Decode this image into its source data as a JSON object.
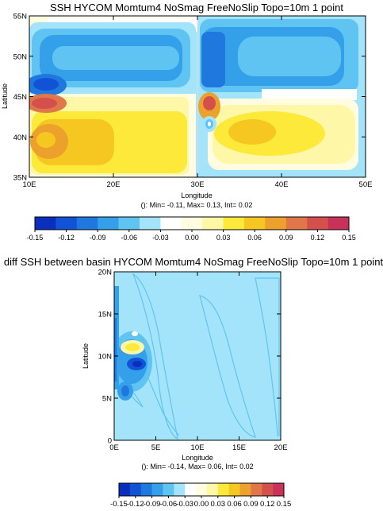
{
  "palette": [
    "#0a2fbe",
    "#1252d4",
    "#1f78de",
    "#35a0ea",
    "#5fc4f2",
    "#a4e4fb",
    "#ffffff",
    "#fffce0",
    "#fff7a8",
    "#fde93a",
    "#f6c720",
    "#eba12c",
    "#e0774a",
    "#d4504d",
    "#c8325a"
  ],
  "colorbar_ticks": [
    "-0.15",
    "-0.12",
    "-0.09",
    "-0.06",
    "-0.03",
    "0.00",
    "0.03",
    "0.06",
    "0.09",
    "0.12",
    "0.15"
  ],
  "chart_data": [
    {
      "type": "heatmap",
      "title": "SSH HYCOM Momtum4 NoSmag FreeNoSlip Topo=10m 1 point",
      "xlabel": "Longitude",
      "ylabel": "Latitude",
      "xlim": [
        10,
        50
      ],
      "ylim": [
        35,
        55
      ],
      "xticks": [
        {
          "v": 10,
          "label": "10E"
        },
        {
          "v": 20,
          "label": "20E"
        },
        {
          "v": 30,
          "label": "30E"
        },
        {
          "v": 40,
          "label": "40E"
        },
        {
          "v": 50,
          "label": "50E"
        }
      ],
      "yticks": [
        {
          "v": 35,
          "label": "35N"
        },
        {
          "v": 40,
          "label": "40N"
        },
        {
          "v": 45,
          "label": "45N"
        },
        {
          "v": 50,
          "label": "50N"
        },
        {
          "v": 55,
          "label": "55N"
        }
      ],
      "stats": "(): Min= -0.11, Max= 0.13, Int= 0.02",
      "zlim": [
        -0.15,
        0.15
      ],
      "contour_interval": 0.02,
      "basins": [
        {
          "lon": [
            10,
            30
          ],
          "lat": [
            35,
            55
          ]
        },
        {
          "lon": [
            30,
            50
          ],
          "lat": [
            35,
            55
          ]
        }
      ],
      "features": [
        {
          "basin": 0,
          "lon": 12,
          "lat": 46,
          "value": -0.11
        },
        {
          "basin": 0,
          "lon": 12,
          "lat": 44,
          "value": 0.13
        },
        {
          "basin": 0,
          "lon": 13,
          "lat": 39.5,
          "value": 0.07
        },
        {
          "basin": 0,
          "lon": 20,
          "lat": 49.5,
          "value": -0.06
        },
        {
          "basin": 0,
          "lon": 20,
          "lat": 41,
          "value": 0.06
        },
        {
          "basin": 1,
          "lon": 32,
          "lat": 49.5,
          "value": -0.09
        },
        {
          "basin": 1,
          "lon": 31.5,
          "lat": 44,
          "value": 0.13
        },
        {
          "basin": 1,
          "lon": 31.5,
          "lat": 41.5,
          "value": -0.06
        },
        {
          "basin": 1,
          "lon": 40,
          "lat": 49.5,
          "value": -0.05
        },
        {
          "basin": 1,
          "lon": 40,
          "lat": 40,
          "value": 0.05
        }
      ]
    },
    {
      "type": "heatmap",
      "title": "diff SSH between basin HYCOM Momtum4 NoSmag FreeNoSlip Topo=10m 1 point",
      "xlabel": "Longitude",
      "ylabel": "Latitude",
      "xlim": [
        0,
        20
      ],
      "ylim": [
        0,
        20
      ],
      "xticks": [
        {
          "v": 0,
          "label": "0E"
        },
        {
          "v": 5,
          "label": "5E"
        },
        {
          "v": 10,
          "label": "10E"
        },
        {
          "v": 15,
          "label": "15E"
        },
        {
          "v": 20,
          "label": "20E"
        }
      ],
      "yticks": [
        {
          "v": 0,
          "label": "0"
        },
        {
          "v": 5,
          "label": "5N"
        },
        {
          "v": 10,
          "label": "10N"
        },
        {
          "v": 15,
          "label": "15N"
        },
        {
          "v": 20,
          "label": "20N"
        }
      ],
      "stats": "(): Min= -0.14, Max= 0.06, Int= 0.02",
      "zlim": [
        -0.15,
        0.15
      ],
      "contour_interval": 0.02,
      "background_value": -0.025,
      "features": [
        {
          "lon": 2.5,
          "lat": 9.3,
          "value": -0.14
        },
        {
          "lon": 2.2,
          "lat": 10.8,
          "value": 0.06
        },
        {
          "lon": 1.5,
          "lat": 12,
          "value": -0.06
        },
        {
          "lon": 1.2,
          "lat": 7.5,
          "value": -0.05
        },
        {
          "lon": 0.5,
          "lat": 11,
          "value": -0.06
        }
      ]
    }
  ]
}
